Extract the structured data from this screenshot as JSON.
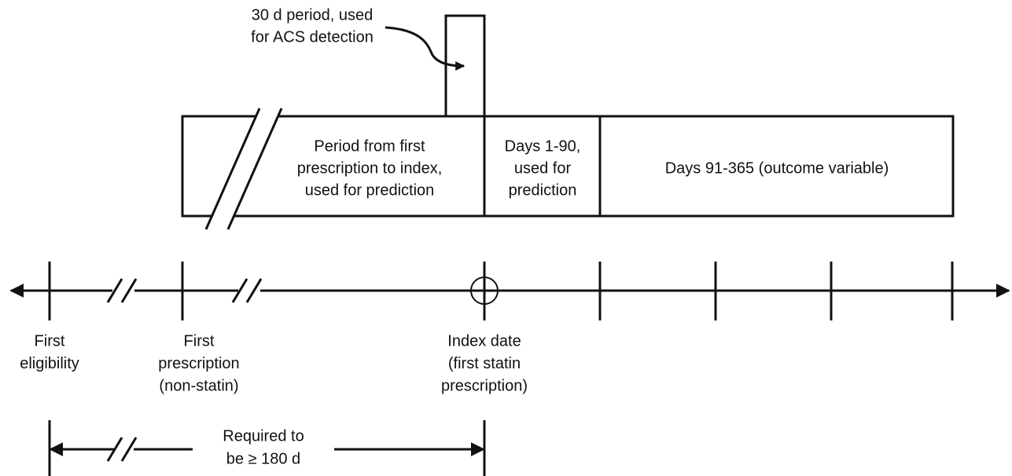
{
  "annotation": [
    "30 d period, used",
    "for ACS detection"
  ],
  "boxes": [
    {
      "lines": [
        "Period from first",
        "prescription to index,",
        "used for prediction"
      ]
    },
    {
      "lines": [
        "Days 1-90,",
        "used for",
        "prediction"
      ]
    },
    {
      "lines": [
        "Days 91-365 (outcome variable)"
      ]
    }
  ],
  "timeline": [
    {
      "lines": [
        "First",
        "eligibility"
      ]
    },
    {
      "lines": [
        "First",
        "prescription",
        "(non-statin)"
      ]
    },
    {
      "lines": [
        "Index date",
        "(first statin",
        "prescription)"
      ]
    }
  ],
  "bracket": [
    "Required to",
    "be ≥ 180 d"
  ]
}
